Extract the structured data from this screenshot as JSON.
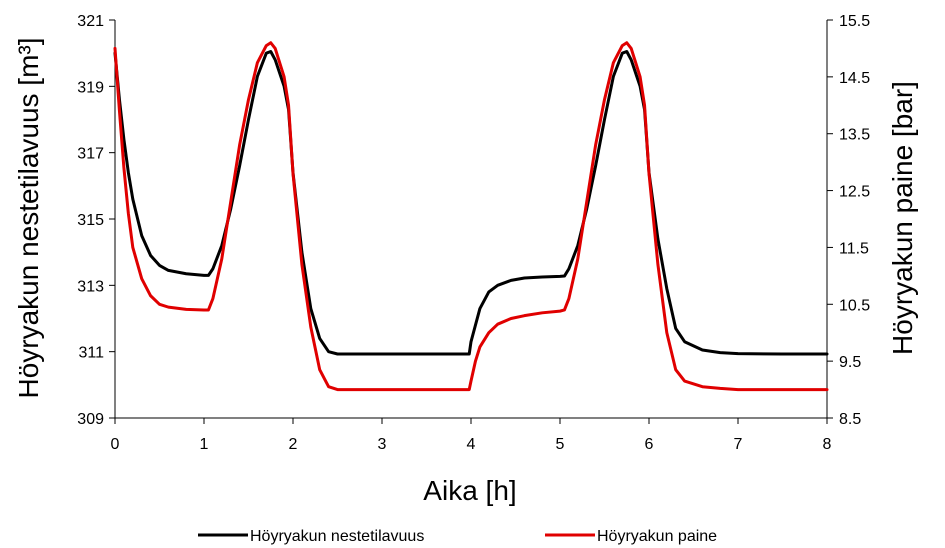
{
  "chart_data": {
    "type": "line",
    "xlabel": "Aika [h]",
    "ylabel_left": "Höyryakun nestetilavuus [m³]",
    "ylabel_right": "Höyryakun paine [bar]",
    "xlim": [
      0,
      8
    ],
    "ylim_left": [
      309,
      321
    ],
    "ylim_right": [
      8.5,
      15.5
    ],
    "x_ticks": [
      "0",
      "1",
      "2",
      "3",
      "4",
      "5",
      "6",
      "7",
      "8"
    ],
    "y_left_ticks": [
      "309",
      "311",
      "313",
      "315",
      "317",
      "319",
      "321"
    ],
    "y_right_ticks": [
      "8.5",
      "9.5",
      "10.5",
      "11.5",
      "12.5",
      "13.5",
      "14.5",
      "15.5"
    ],
    "grid": false,
    "legend_position": "bottom",
    "series": [
      {
        "name": "Höyryakun nestetilavuus",
        "axis": "left",
        "color": "#000000",
        "points": [
          [
            0,
            320.0
          ],
          [
            0.05,
            318.6
          ],
          [
            0.1,
            317.4
          ],
          [
            0.15,
            316.4
          ],
          [
            0.2,
            315.6
          ],
          [
            0.3,
            314.5
          ],
          [
            0.4,
            313.9
          ],
          [
            0.5,
            313.6
          ],
          [
            0.6,
            313.45
          ],
          [
            0.8,
            313.35
          ],
          [
            1.0,
            313.3
          ],
          [
            1.05,
            313.3
          ],
          [
            1.1,
            313.5
          ],
          [
            1.2,
            314.2
          ],
          [
            1.3,
            315.3
          ],
          [
            1.4,
            316.6
          ],
          [
            1.5,
            318.0
          ],
          [
            1.6,
            319.3
          ],
          [
            1.7,
            320.0
          ],
          [
            1.75,
            320.05
          ],
          [
            1.8,
            319.8
          ],
          [
            1.9,
            319.0
          ],
          [
            1.95,
            318.3
          ],
          [
            2.0,
            316.4
          ],
          [
            2.1,
            314.0
          ],
          [
            2.2,
            312.3
          ],
          [
            2.3,
            311.4
          ],
          [
            2.4,
            311.0
          ],
          [
            2.5,
            310.93
          ],
          [
            3.0,
            310.93
          ],
          [
            3.5,
            310.93
          ],
          [
            3.98,
            310.93
          ],
          [
            4.0,
            311.3
          ],
          [
            4.05,
            311.8
          ],
          [
            4.1,
            312.3
          ],
          [
            4.2,
            312.8
          ],
          [
            4.3,
            313.0
          ],
          [
            4.45,
            313.15
          ],
          [
            4.6,
            313.22
          ],
          [
            4.8,
            313.25
          ],
          [
            5.0,
            313.27
          ],
          [
            5.05,
            313.28
          ],
          [
            5.1,
            313.5
          ],
          [
            5.2,
            314.2
          ],
          [
            5.3,
            315.3
          ],
          [
            5.4,
            316.6
          ],
          [
            5.5,
            318.0
          ],
          [
            5.6,
            319.3
          ],
          [
            5.7,
            320.0
          ],
          [
            5.75,
            320.05
          ],
          [
            5.8,
            319.8
          ],
          [
            5.9,
            319.0
          ],
          [
            5.95,
            318.3
          ],
          [
            6.0,
            316.4
          ],
          [
            6.1,
            314.4
          ],
          [
            6.2,
            312.9
          ],
          [
            6.3,
            311.7
          ],
          [
            6.4,
            311.3
          ],
          [
            6.6,
            311.05
          ],
          [
            6.8,
            310.97
          ],
          [
            7.0,
            310.94
          ],
          [
            7.5,
            310.93
          ],
          [
            8.0,
            310.93
          ]
        ]
      },
      {
        "name": "Höyryakun paine",
        "axis": "right",
        "color": "#e00000",
        "points": [
          [
            0,
            15.0
          ],
          [
            0.05,
            13.9
          ],
          [
            0.1,
            12.9
          ],
          [
            0.15,
            12.1
          ],
          [
            0.2,
            11.5
          ],
          [
            0.3,
            10.95
          ],
          [
            0.4,
            10.65
          ],
          [
            0.5,
            10.5
          ],
          [
            0.6,
            10.45
          ],
          [
            0.8,
            10.41
          ],
          [
            1.0,
            10.4
          ],
          [
            1.05,
            10.4
          ],
          [
            1.1,
            10.6
          ],
          [
            1.2,
            11.3
          ],
          [
            1.3,
            12.3
          ],
          [
            1.4,
            13.3
          ],
          [
            1.5,
            14.1
          ],
          [
            1.6,
            14.75
          ],
          [
            1.7,
            15.05
          ],
          [
            1.75,
            15.1
          ],
          [
            1.8,
            15.0
          ],
          [
            1.9,
            14.5
          ],
          [
            1.95,
            14.0
          ],
          [
            2.0,
            12.8
          ],
          [
            2.1,
            11.2
          ],
          [
            2.2,
            10.1
          ],
          [
            2.3,
            9.35
          ],
          [
            2.4,
            9.05
          ],
          [
            2.5,
            9.0
          ],
          [
            3.0,
            9.0
          ],
          [
            3.5,
            9.0
          ],
          [
            3.98,
            9.0
          ],
          [
            4.0,
            9.15
          ],
          [
            4.05,
            9.5
          ],
          [
            4.1,
            9.75
          ],
          [
            4.2,
            10.0
          ],
          [
            4.3,
            10.15
          ],
          [
            4.45,
            10.25
          ],
          [
            4.6,
            10.3
          ],
          [
            4.8,
            10.35
          ],
          [
            5.0,
            10.38
          ],
          [
            5.05,
            10.4
          ],
          [
            5.1,
            10.6
          ],
          [
            5.2,
            11.3
          ],
          [
            5.3,
            12.3
          ],
          [
            5.4,
            13.3
          ],
          [
            5.5,
            14.1
          ],
          [
            5.6,
            14.75
          ],
          [
            5.7,
            15.05
          ],
          [
            5.75,
            15.1
          ],
          [
            5.8,
            15.0
          ],
          [
            5.9,
            14.5
          ],
          [
            5.95,
            14.0
          ],
          [
            6.0,
            12.8
          ],
          [
            6.1,
            11.2
          ],
          [
            6.2,
            10.0
          ],
          [
            6.3,
            9.35
          ],
          [
            6.4,
            9.15
          ],
          [
            6.6,
            9.05
          ],
          [
            6.8,
            9.02
          ],
          [
            7.0,
            9.0
          ],
          [
            7.5,
            9.0
          ],
          [
            8.0,
            9.0
          ]
        ]
      }
    ]
  }
}
